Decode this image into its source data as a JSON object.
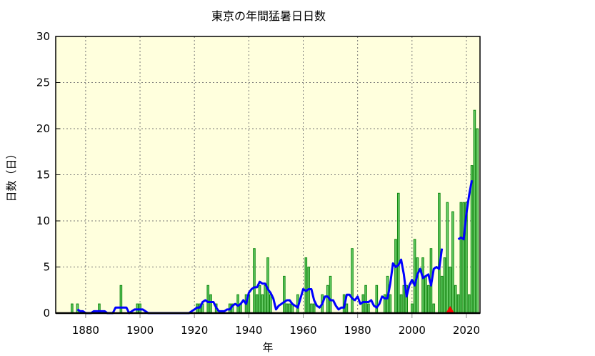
{
  "chart_data": {
    "type": "bar",
    "title": "東京の年間猛暑日日数",
    "xlabel": "年",
    "ylabel": "日数（日）",
    "xlim": [
      1869,
      2025
    ],
    "ylim": [
      0,
      30
    ],
    "xticks": [
      "1880",
      "1900",
      "1920",
      "1940",
      "1960",
      "1980",
      "2000",
      "2020"
    ],
    "yticks": [
      "0",
      "5",
      "10",
      "15",
      "20",
      "25",
      "30"
    ],
    "grid": true,
    "background": "#ffffdd",
    "first_year": 1875,
    "years_range": [
      1875,
      2024
    ],
    "values": [
      1,
      0,
      1,
      0,
      0,
      0,
      0,
      0,
      0,
      0,
      1,
      0,
      0,
      0,
      0,
      0,
      0,
      0,
      3,
      0,
      0,
      0,
      0,
      0,
      1,
      1,
      0,
      0,
      0,
      0,
      0,
      0,
      0,
      0,
      0,
      0,
      0,
      0,
      0,
      0,
      0,
      0,
      0,
      0,
      0,
      0,
      1,
      1,
      1,
      0,
      3,
      2,
      0,
      1,
      0,
      0,
      0,
      0,
      1,
      1,
      0,
      2,
      1,
      0,
      2,
      2,
      0,
      7,
      2,
      3,
      2,
      3,
      6,
      2,
      0,
      0,
      0,
      0,
      4,
      1,
      1,
      1,
      0,
      2,
      0,
      0,
      6,
      5,
      1,
      1,
      0,
      0,
      2,
      0,
      3,
      4,
      0,
      0,
      0,
      0,
      2,
      1,
      0,
      7,
      0,
      0,
      0,
      2,
      3,
      1,
      0,
      0,
      3,
      0,
      0,
      2,
      4,
      2,
      0,
      8,
      13,
      2,
      3,
      3,
      0,
      1,
      8,
      6,
      0,
      6,
      4,
      3,
      7,
      1,
      0,
      13,
      4,
      6,
      12,
      5,
      11,
      3,
      2,
      12,
      12,
      12,
      2,
      16,
      22,
      20
    ],
    "overlay": {
      "type": "line",
      "kind": "5-year centered moving average",
      "color": "#0000ff"
    },
    "marker": {
      "shape": "triangle",
      "year": 2014,
      "color": "#ff0000"
    },
    "colors": {
      "bar_fill": "#66cc66",
      "bar_edge": "#118811"
    }
  }
}
